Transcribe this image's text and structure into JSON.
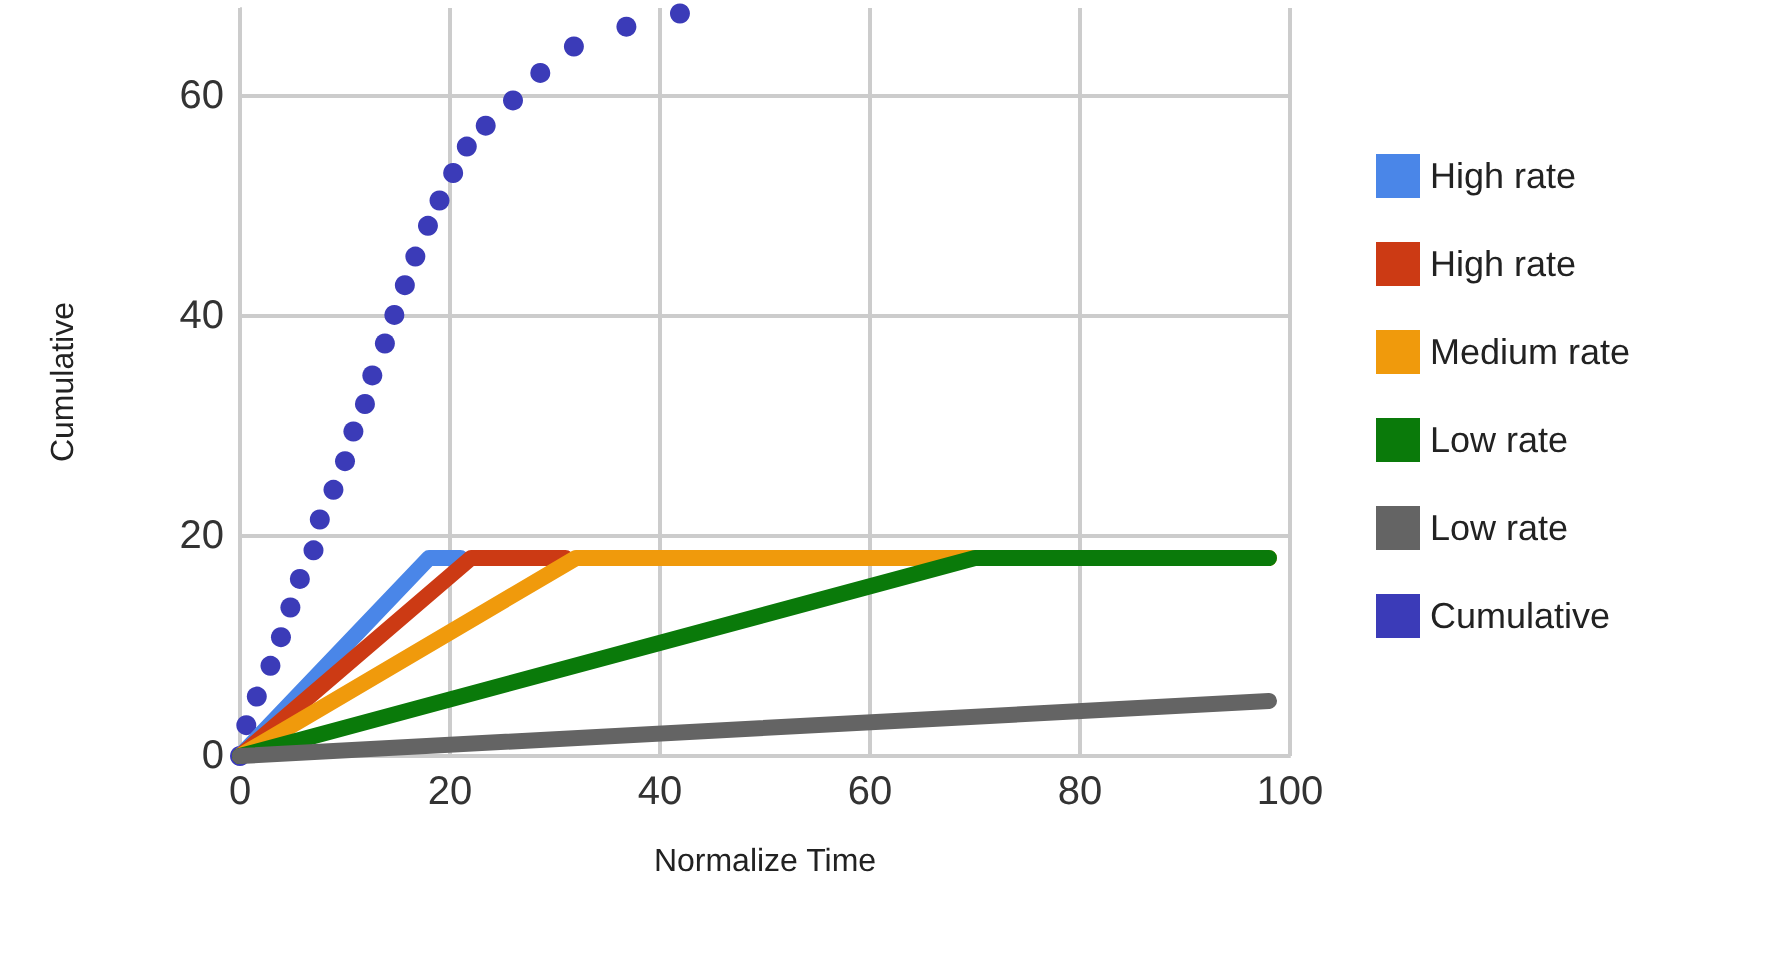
{
  "chart_data": {
    "type": "line",
    "xlabel": "Normalize Time",
    "ylabel": "Cumulative",
    "xlim": [
      0,
      100
    ],
    "xticks": [
      0,
      20,
      40,
      60,
      80,
      100
    ],
    "ylim": [
      0,
      68
    ],
    "yticks": [
      0,
      20,
      40,
      60
    ],
    "grid": true,
    "legend": "right",
    "line_style": "solid",
    "series": [
      {
        "name": "High rate",
        "color": "#4a86e8",
        "marker": "none",
        "x": [
          0,
          18,
          21
        ],
        "values": [
          0,
          18,
          18
        ]
      },
      {
        "name": "High rate",
        "color": "#cc3a14",
        "marker": "none",
        "x": [
          0,
          22,
          31
        ],
        "values": [
          0,
          18,
          18
        ]
      },
      {
        "name": "Medium rate",
        "color": "#f09a0c",
        "marker": "none",
        "x": [
          0,
          32,
          98
        ],
        "values": [
          0,
          18,
          18
        ]
      },
      {
        "name": "Low rate",
        "color": "#0a7a0a",
        "marker": "none",
        "x": [
          0,
          70,
          98
        ],
        "values": [
          0,
          18,
          18
        ]
      },
      {
        "name": "Low rate",
        "color": "#646464",
        "marker": "none",
        "x": [
          0,
          98
        ],
        "values": [
          0,
          5
        ]
      },
      {
        "name": "Cumulative",
        "type": "scatter",
        "color": "#3b3bb8",
        "marker": "circle",
        "x": [
          0,
          0.6,
          1.6,
          2.9,
          3.9,
          4.8,
          5.7,
          7,
          7.6,
          8.9,
          10,
          10.8,
          11.9,
          12.6,
          13.8,
          14.7,
          15.7,
          16.7,
          17.9,
          19,
          20.3,
          21.6,
          23.4,
          26,
          28.6,
          31.8,
          36.8,
          41.9
        ],
        "values": [
          0,
          2.8,
          5.4,
          8.2,
          10.8,
          13.5,
          16.1,
          18.7,
          21.5,
          24.2,
          26.8,
          29.5,
          32,
          34.6,
          37.5,
          40.1,
          42.8,
          45.4,
          48.2,
          50.5,
          53,
          55.4,
          57.3,
          59.6,
          62.1,
          64.5,
          66.3,
          67.5
        ]
      }
    ]
  }
}
